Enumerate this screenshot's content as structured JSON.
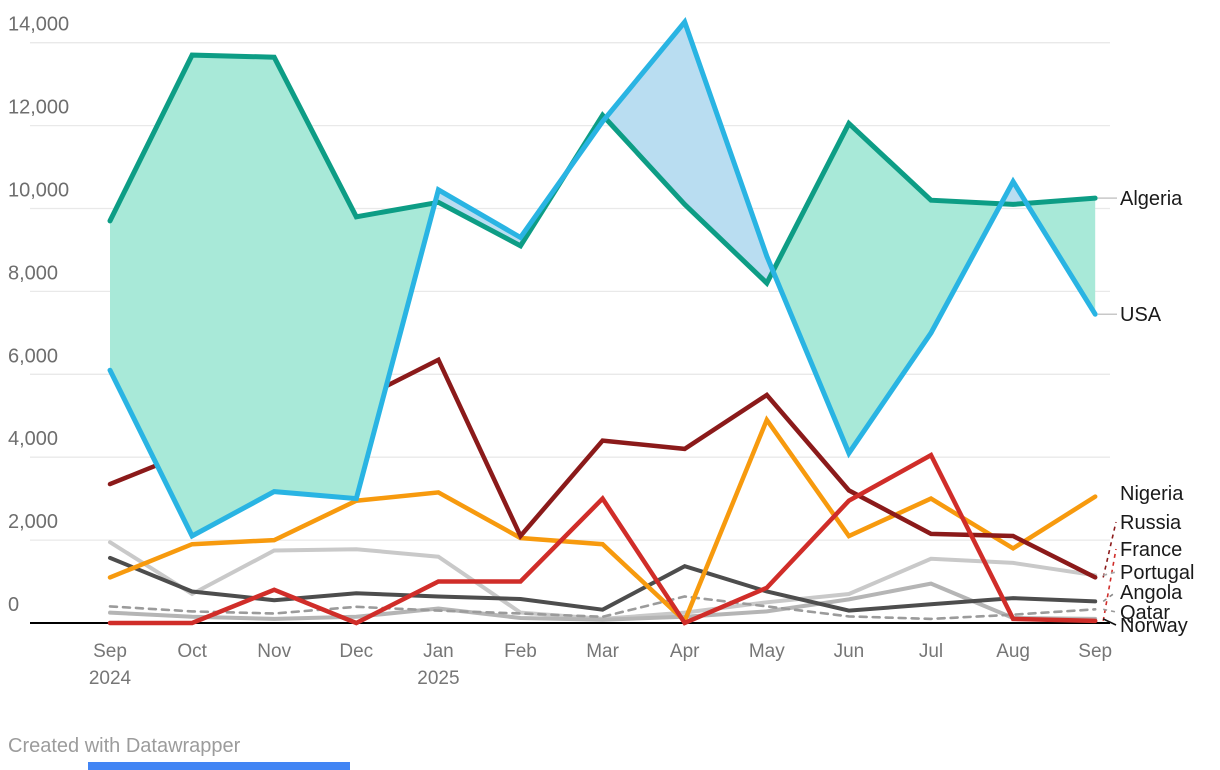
{
  "chart_data": {
    "type": "line",
    "title": "",
    "categories": [
      {
        "label": "Sep",
        "sublabel": "2024"
      },
      {
        "label": "Oct"
      },
      {
        "label": "Nov"
      },
      {
        "label": "Dec"
      },
      {
        "label": "Jan",
        "sublabel": "2025"
      },
      {
        "label": "Feb"
      },
      {
        "label": "Mar"
      },
      {
        "label": "Apr"
      },
      {
        "label": "May"
      },
      {
        "label": "Jun"
      },
      {
        "label": "Jul"
      },
      {
        "label": "Aug"
      },
      {
        "label": "Sep"
      }
    ],
    "y_ticks": [
      0,
      2000,
      4000,
      6000,
      8000,
      10000,
      12000,
      14000
    ],
    "ylim": [
      0,
      14500
    ],
    "grid": true,
    "legend_position": "right-edge-labels",
    "series": [
      {
        "name": "Algeria",
        "color": "#0d9d85",
        "values": [
          9700,
          13700,
          13650,
          9800,
          10150,
          9100,
          12250,
          10100,
          8200,
          12050,
          10200,
          10100,
          10250
        ]
      },
      {
        "name": "USA",
        "color": "#29b4e3",
        "values": [
          6100,
          2100,
          3170,
          3000,
          10450,
          9300,
          12100,
          14500,
          8850,
          4100,
          7000,
          10650,
          7450
        ]
      },
      {
        "name": "Nigeria",
        "color": "#f79a0e",
        "values": [
          1100,
          1900,
          2000,
          2950,
          3150,
          2050,
          1900,
          50,
          4900,
          2100,
          3000,
          1800,
          3050
        ]
      },
      {
        "name": "Russia",
        "color": "#8b1a1a",
        "values": [
          3350,
          4150,
          6280,
          5350,
          6350,
          2100,
          4400,
          4200,
          5500,
          3200,
          2150,
          2100,
          1100
        ]
      },
      {
        "name": "France",
        "color": "#d02d29",
        "values": [
          0,
          0,
          800,
          0,
          1000,
          1000,
          3000,
          0,
          850,
          2950,
          4050,
          100,
          50
        ]
      },
      {
        "name": "Portugal",
        "color": "#c9c9c9",
        "values": [
          1950,
          700,
          1750,
          1780,
          1600,
          250,
          100,
          250,
          500,
          700,
          1550,
          1450,
          1150
        ]
      },
      {
        "name": "Angola",
        "color": "#4d4d4d",
        "values": [
          1570,
          760,
          550,
          720,
          640,
          580,
          320,
          1370,
          760,
          300,
          450,
          600,
          520
        ]
      },
      {
        "name": "Qatar",
        "color": "#9b9b9b",
        "dashed": true,
        "values": [
          400,
          280,
          230,
          390,
          300,
          230,
          150,
          640,
          400,
          160,
          100,
          200,
          330
        ]
      },
      {
        "name": "Norway",
        "color": "#b5b5b5",
        "values": [
          250,
          150,
          100,
          150,
          350,
          120,
          80,
          150,
          280,
          570,
          950,
          120,
          100
        ]
      }
    ],
    "fill_between": {
      "upper_series": "Algeria",
      "lower_series": "USA",
      "color_when_first_above": "#a8e9d8",
      "color_when_second_above": "#b9ddf1"
    }
  },
  "footer": {
    "credit": "Created with Datawrapper"
  }
}
